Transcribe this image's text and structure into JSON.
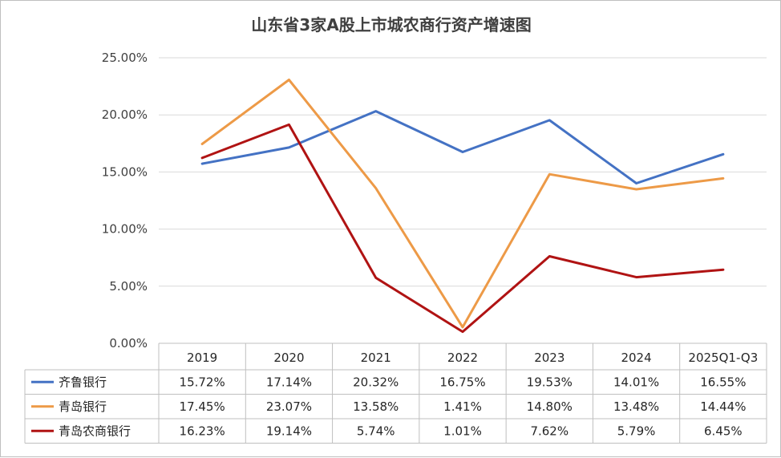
{
  "chart_data": {
    "type": "line",
    "title": "山东省3家A股上市城农商行资产增速图",
    "categories": [
      "2019",
      "2020",
      "2021",
      "2022",
      "2023",
      "2024",
      "2025Q1-Q3"
    ],
    "ylim": [
      0,
      25
    ],
    "yticks": [
      "0.00%",
      "5.00%",
      "10.00%",
      "15.00%",
      "20.00%",
      "25.00%"
    ],
    "series": [
      {
        "name": "齐鲁银行",
        "color": "#4472c4",
        "values": [
          15.72,
          17.14,
          20.32,
          16.75,
          19.53,
          14.01,
          16.55
        ],
        "labels": [
          "15.72%",
          "17.14%",
          "20.32%",
          "16.75%",
          "19.53%",
          "14.01%",
          "16.55%"
        ]
      },
      {
        "name": "青岛银行",
        "color": "#ed9a47",
        "values": [
          17.45,
          23.07,
          13.58,
          1.41,
          14.8,
          13.48,
          14.44
        ],
        "labels": [
          "17.45%",
          "23.07%",
          "13.58%",
          "1.41%",
          "14.80%",
          "13.48%",
          "14.44%"
        ]
      },
      {
        "name": "青岛农商银行",
        "color": "#b01313",
        "values": [
          16.23,
          19.14,
          5.74,
          1.01,
          7.62,
          5.79,
          6.45
        ],
        "labels": [
          "16.23%",
          "19.14%",
          "5.74%",
          "1.01%",
          "7.62%",
          "5.79%",
          "6.45%"
        ]
      }
    ]
  }
}
